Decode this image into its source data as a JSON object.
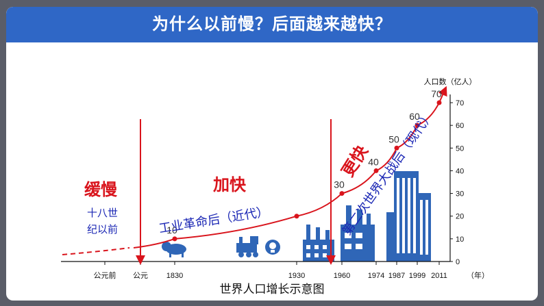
{
  "page": {
    "title": "为什么以前慢？后面越来越快？"
  },
  "caption": "世界人口增长示意图",
  "labels": {
    "slow": "缓慢",
    "faster": "加快",
    "fastest": "更快",
    "pre18": [
      "十八世",
      "纪以前"
    ],
    "modern_early": "工业革命后（近代）",
    "modern_late": "第二次世界大战后（现代）"
  },
  "colors": {
    "header": "#2f67c6",
    "curve": "#d9141c",
    "text_blue": "#1a26b4",
    "icon_blue": "#2f66b7"
  },
  "icons": [
    "bison-icon",
    "locomotive-icon",
    "lightbulb-icon",
    "factory-icon",
    "industrial-plant-icon",
    "skyscraper-icon"
  ],
  "chart_data": {
    "type": "line",
    "title": "",
    "xlabel": "年",
    "ylabel": "人口数（亿人）",
    "ylim": [
      0,
      70
    ],
    "yticks": [
      0,
      10,
      20,
      30,
      40,
      50,
      60,
      70
    ],
    "ytick_labels": [
      "0",
      "10",
      "20",
      "30",
      "40",
      "50",
      "60",
      "70"
    ],
    "xtick_labels": [
      "公元前",
      "公元",
      "1830",
      "1930",
      "1960",
      "1974",
      "1987",
      "1999",
      "2011"
    ],
    "points": [
      {
        "x": "1830",
        "y": 10
      },
      {
        "x": "1930",
        "y": 20
      },
      {
        "x": "1960",
        "y": 30
      },
      {
        "x": "1974",
        "y": 40
      },
      {
        "x": "1987",
        "y": 50
      },
      {
        "x": "1999",
        "y": 60
      },
      {
        "x": "2011",
        "y": 70
      }
    ],
    "point_labels": [
      "10",
      "30",
      "40",
      "50",
      "60",
      "70"
    ]
  }
}
